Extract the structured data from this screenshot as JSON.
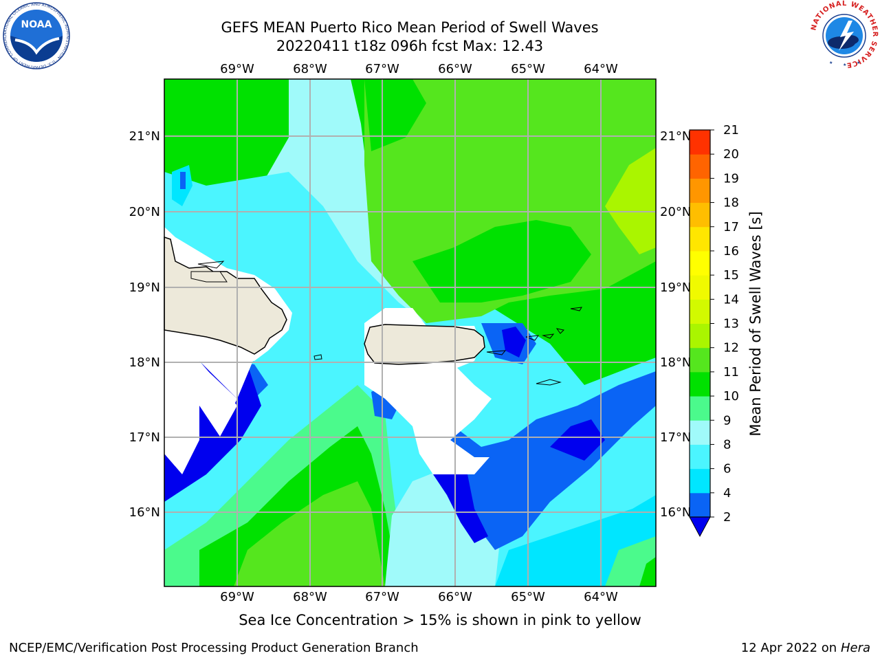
{
  "title": {
    "line1": "GEFS MEAN Puerto Rico Mean Period of Swell Waves",
    "line2": "20220411 t18z 096h fcst   Max: 12.43"
  },
  "map": {
    "lon_labels": [
      "69°W",
      "68°W",
      "67°W",
      "66°W",
      "65°W",
      "64°W"
    ],
    "lat_labels": [
      "21°N",
      "20°N",
      "19°N",
      "18°N",
      "17°N",
      "16°N"
    ],
    "land_color": "#ede9da"
  },
  "colorbar": {
    "label": "Mean Period of Swell Waves [s]",
    "ticks": [
      "2",
      "4",
      "6",
      "8",
      "9",
      "10",
      "11",
      "12",
      "13",
      "14",
      "15",
      "16",
      "17",
      "18",
      "19",
      "20",
      "21"
    ],
    "colors": [
      "#0a64f5",
      "#00e6ff",
      "#4bf5ff",
      "#a0fafa",
      "#4bfa8c",
      "#00e100",
      "#55e61e",
      "#aaf500",
      "#d2fa00",
      "#f0fa00",
      "#ffff00",
      "#ffe600",
      "#ffbe00",
      "#ff9600",
      "#ff6400",
      "#ff3200"
    ],
    "under_color": "#0000ee"
  },
  "caption": "Sea Ice Concentration > 15% is shown in pink to yellow",
  "footer": {
    "left": "NCEP/EMC/Verification Post Processing Product Generation Branch",
    "date": "12 Apr 2022 on ",
    "host": "Hera"
  },
  "logos": {
    "noaa_text": "NOAA",
    "noaa_ring": "NATIONAL OCEANIC AND ATMOSPHERIC ADMINISTRATION · U.S. DEPARTMENT OF COMMERCE",
    "nws_ring": "NATIONAL WEATHER SERVICE"
  }
}
